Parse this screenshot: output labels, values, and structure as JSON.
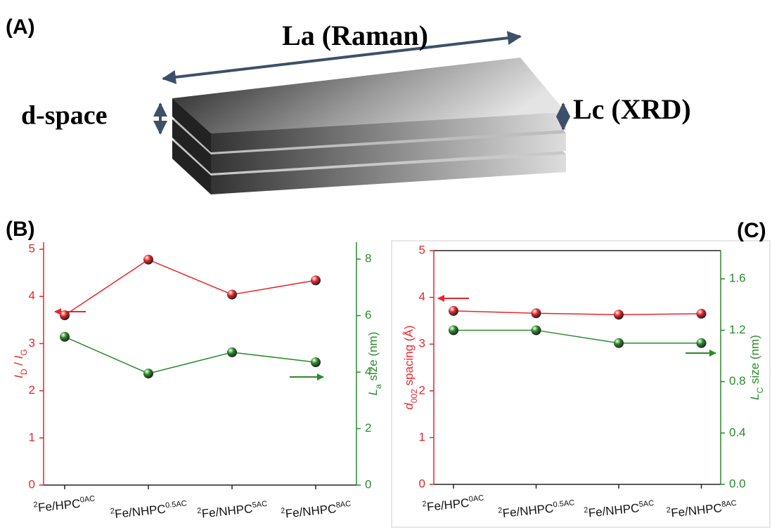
{
  "diagram": {
    "panel": "(A)",
    "la": "La (Raman)",
    "d": "d-space",
    "lc": "Lc (XRD)"
  },
  "chart_data": [
    {
      "type": "line",
      "panel": "(B)",
      "categories": [
        {
          "pre": "2",
          "main": "Fe/HPC",
          "sup": "0AC"
        },
        {
          "pre": "2",
          "main": "Fe/NHPC",
          "sup": "0.5AC"
        },
        {
          "pre": "2",
          "main": "Fe/NHPC",
          "sup": "5AC"
        },
        {
          "pre": "2",
          "main": "Fe/NHPC",
          "sup": "8AC"
        }
      ],
      "ylabel": [
        {
          "text": "I",
          "style": "italic"
        },
        {
          "text": "D",
          "style": "sub"
        },
        {
          "text": " / ",
          "style": "normal"
        },
        {
          "text": "I",
          "style": "italic"
        },
        {
          "text": "G",
          "style": "sub"
        }
      ],
      "y2label": [
        {
          "text": "L",
          "style": "italic"
        },
        {
          "text": "a",
          "style": "sub"
        },
        {
          "text": " size (nm)",
          "style": "normal"
        }
      ],
      "ylim": [
        0,
        5.15
      ],
      "yticks": [
        0,
        1,
        2,
        3,
        4,
        5
      ],
      "y2lim": [
        0,
        8.6
      ],
      "y2ticks": [
        0,
        2,
        4,
        6,
        8
      ],
      "series": [
        {
          "color": "#e8262a",
          "values": [
            3.6,
            4.78,
            4.04,
            4.34
          ]
        },
        {
          "color": "#2a8a2a",
          "values": [
            5.25,
            3.95,
            4.7,
            4.35
          ],
          "axis": "y2"
        }
      ]
    },
    {
      "type": "line",
      "panel": "(C)",
      "categories": [
        {
          "pre": "2",
          "main": "Fe/HPC",
          "sup": "0AC"
        },
        {
          "pre": "2",
          "main": "Fe/NHPC",
          "sup": "0.5AC"
        },
        {
          "pre": "2",
          "main": "Fe/NHPC",
          "sup": "5AC"
        },
        {
          "pre": "2",
          "main": "Fe/NHPC",
          "sup": "8AC"
        }
      ],
      "ylabel": [
        {
          "text": "d",
          "style": "italic"
        },
        {
          "text": "002",
          "style": "sub"
        },
        {
          "text": " spacing (Å)",
          "style": "normal"
        }
      ],
      "y2label": [
        {
          "text": "L",
          "style": "italic"
        },
        {
          "text": "C",
          "style": "sub"
        },
        {
          "text": " size (nm)",
          "style": "normal"
        }
      ],
      "ylim": [
        0,
        5
      ],
      "yticks": [
        0,
        1,
        2,
        3,
        4,
        5
      ],
      "y2lim": [
        0,
        1.82
      ],
      "y2ticks": [
        {
          "value": 0,
          "label": "0.0"
        },
        0.4,
        0.8,
        1.2,
        1.6
      ],
      "series": [
        {
          "color": "#e8262a",
          "values": [
            3.71,
            3.66,
            3.63,
            3.65
          ]
        },
        {
          "color": "#2a8a2a",
          "values": [
            1.2,
            1.2,
            1.1,
            1.1
          ],
          "axis": "y2"
        }
      ]
    }
  ]
}
